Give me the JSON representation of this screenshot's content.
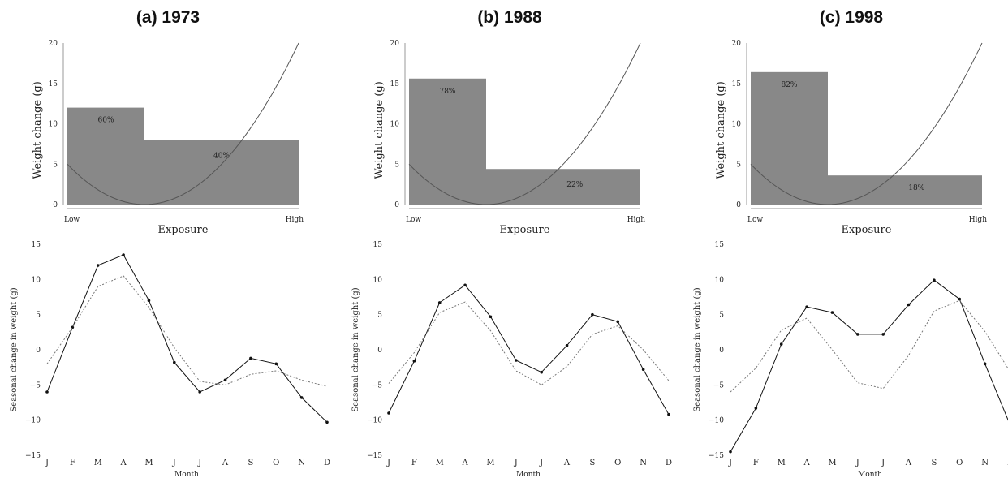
{
  "panels": [
    {
      "title": "(a) 1973",
      "exposure_chart": {
        "type": "bar",
        "xlabel": "Exposure",
        "ylabel": "Weight change  (g)",
        "x_ticks": [
          "Low",
          "High"
        ],
        "ylim": [
          0,
          20
        ],
        "y_ticks": [
          "0",
          "5",
          "10",
          "15",
          "20"
        ],
        "bars": [
          {
            "from": 0,
            "to": 1,
            "value": 12,
            "label": "60%"
          },
          {
            "from": 1,
            "to": 3,
            "value": 8,
            "label": "40%"
          }
        ],
        "curve": "parabola, minimum 0 at exposure 1, 5 at Low, 20 at High"
      },
      "seasonal_chart": {
        "type": "line",
        "xlabel": "Month",
        "ylabel": "Seasonal change in weight (g)",
        "categories": [
          "J",
          "F",
          "M",
          "A",
          "M",
          "J",
          "J",
          "A",
          "S",
          "O",
          "N",
          "D"
        ],
        "ylim": [
          -15,
          15
        ],
        "y_ticks": [
          "15",
          "10",
          "5",
          "0",
          "−5",
          "−10",
          "−15"
        ],
        "series": [
          {
            "style": "solid",
            "values": [
              -6,
              3.2,
              12,
              13.5,
              7,
              -1.8,
              -6,
              -4.3,
              -1.2,
              -2,
              -6.8,
              -10.3
            ]
          },
          {
            "style": "dotted",
            "values": [
              -2,
              3.2,
              9,
              10.5,
              6,
              0.3,
              -4.5,
              -5,
              -3.5,
              -3,
              -4.3,
              -5.2
            ]
          }
        ]
      }
    },
    {
      "title": "(b) 1988",
      "exposure_chart": {
        "type": "bar",
        "xlabel": "Exposure",
        "ylabel": "Weight change  (g)",
        "x_ticks": [
          "Low",
          "High"
        ],
        "ylim": [
          0,
          20
        ],
        "y_ticks": [
          "0",
          "5",
          "10",
          "15",
          "20"
        ],
        "bars": [
          {
            "from": 0,
            "to": 1,
            "value": 15.6,
            "label": "78%"
          },
          {
            "from": 1,
            "to": 3,
            "value": 4.4,
            "label": "22%"
          }
        ],
        "curve": "parabola, minimum 0 at exposure 1, 5 at Low, 20 at High"
      },
      "seasonal_chart": {
        "type": "line",
        "xlabel": "Month",
        "ylabel": "Seasonal change in weight (g)",
        "categories": [
          "J",
          "F",
          "M",
          "A",
          "M",
          "J",
          "J",
          "A",
          "S",
          "O",
          "N",
          "D"
        ],
        "ylim": [
          -15,
          15
        ],
        "y_ticks": [
          "15",
          "10",
          "5",
          "0",
          "−5",
          "−10",
          "−15"
        ],
        "series": [
          {
            "style": "solid",
            "values": [
              -9,
              -1.6,
              6.7,
              9.2,
              4.7,
              -1.5,
              -3.2,
              0.6,
              5,
              4,
              -2.8,
              -9.2
            ]
          },
          {
            "style": "dotted",
            "values": [
              -4.8,
              -0.4,
              5.3,
              6.8,
              2.7,
              -3,
              -5,
              -2.4,
              2.2,
              3.4,
              0,
              -4.4
            ]
          }
        ]
      }
    },
    {
      "title": "(c) 1998",
      "exposure_chart": {
        "type": "bar",
        "xlabel": "Exposure",
        "ylabel": "Weight change  (g)",
        "x_ticks": [
          "Low",
          "High"
        ],
        "ylim": [
          0,
          20
        ],
        "y_ticks": [
          "0",
          "5",
          "10",
          "15",
          "20"
        ],
        "bars": [
          {
            "from": 0,
            "to": 1,
            "value": 16.4,
            "label": "82%"
          },
          {
            "from": 1,
            "to": 3,
            "value": 3.6,
            "label": "18%"
          }
        ],
        "curve": "parabola, minimum 0 at exposure 1, 5 at Low, 20 at High"
      },
      "seasonal_chart": {
        "type": "line",
        "xlabel": "Month",
        "ylabel": "Seasonal change in weight (g)",
        "categories": [
          "J",
          "F",
          "M",
          "A",
          "M",
          "J",
          "J",
          "A",
          "S",
          "O",
          "N",
          "D"
        ],
        "ylim": [
          -15,
          15
        ],
        "y_ticks": [
          "15",
          "10",
          "5",
          "0",
          "−5",
          "−10",
          "−15"
        ],
        "series": [
          {
            "style": "solid",
            "values": [
              -14.5,
              -8.3,
              0.8,
              6.1,
              5.3,
              2.2,
              2.2,
              6.4,
              9.9,
              7.2,
              -2,
              -10.8
            ]
          },
          {
            "style": "dotted",
            "values": [
              -6,
              -2.6,
              2.8,
              4.5,
              0,
              -4.7,
              -5.5,
              -0.8,
              5.5,
              7,
              2.6,
              -3.2
            ]
          }
        ]
      }
    }
  ],
  "colors": {
    "bar_fill": "#888888",
    "curve": "#555555",
    "axis": "#999999",
    "solid_line": "#111111",
    "dotted_line": "#777777"
  }
}
